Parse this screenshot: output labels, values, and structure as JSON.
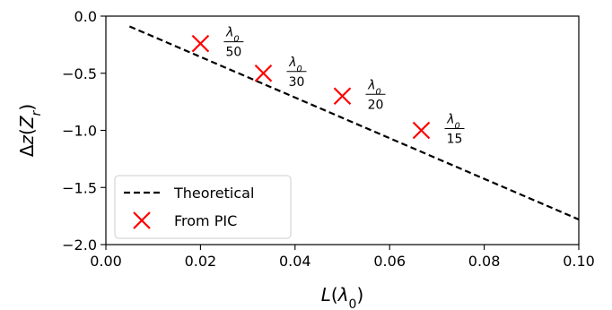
{
  "chart_data": {
    "type": "scatter",
    "title": "",
    "xlabel": "L(λ0)",
    "ylabel": "Δz(Zr)",
    "xlim": [
      0.0,
      0.1
    ],
    "ylim": [
      -2.0,
      0.0
    ],
    "x_ticks": [
      "0.00",
      "0.02",
      "0.04",
      "0.06",
      "0.08",
      "0.10"
    ],
    "y_ticks": [
      "0.0",
      "−0.5",
      "−1.0",
      "−1.5",
      "−2.0"
    ],
    "grid": false,
    "legend_position": "lower-left",
    "series": [
      {
        "name": "Theoretical",
        "kind": "line",
        "style": "dashed",
        "color": "#000000",
        "x": [
          0.005,
          0.1
        ],
        "y": [
          -0.09,
          -1.78
        ]
      },
      {
        "name": "From PIC",
        "kind": "scatter",
        "marker": "x",
        "color": "#ff0000",
        "x": [
          0.02,
          0.0333,
          0.05,
          0.0667
        ],
        "y": [
          -0.24,
          -0.5,
          -0.7,
          -1.0
        ],
        "labels": [
          {
            "num": "λ0",
            "den": "50"
          },
          {
            "num": "λ0",
            "den": "30"
          },
          {
            "num": "λ0",
            "den": "20"
          },
          {
            "num": "λ0",
            "den": "15"
          }
        ]
      }
    ]
  }
}
